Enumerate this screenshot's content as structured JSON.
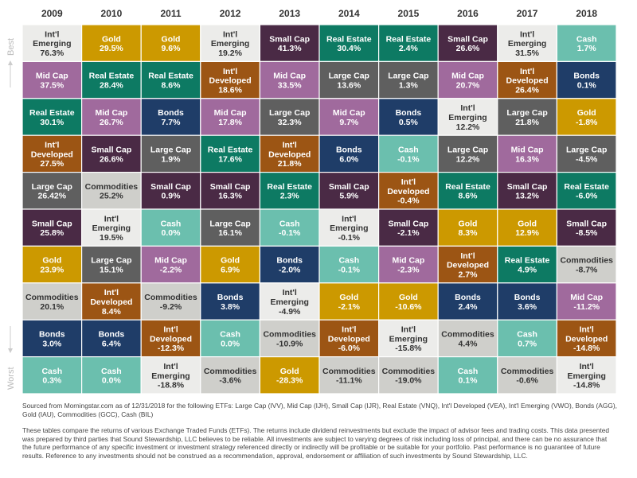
{
  "side_labels": {
    "best": "Best",
    "worst": "Worst"
  },
  "colors": {
    "Int'l Emerging": "#ececea",
    "Gold": "#cc9900",
    "Small Cap": "#4a2a45",
    "Real Estate": "#0d7a63",
    "Cash": "#6bbfae",
    "Mid Cap": "#a06a9d",
    "Large Cap": "#5f5f5f",
    "Int'l Developed": "#9c5514",
    "Bonds": "#1f3d68",
    "Commodities": "#cfcfcb"
  },
  "dark_text_classes": [
    "Int'l Emerging",
    "Commodities"
  ],
  "chart_data": {
    "type": "table",
    "years": [
      "2009",
      "2010",
      "2011",
      "2012",
      "2013",
      "2014",
      "2015",
      "2016",
      "2017",
      "2018"
    ],
    "columns": [
      [
        [
          "Int'l Emerging",
          "76.3%"
        ],
        [
          "Mid Cap",
          "37.5%"
        ],
        [
          "Real Estate",
          "30.1%"
        ],
        [
          "Int'l Developed",
          "27.5%"
        ],
        [
          "Large Cap",
          "26.42%"
        ],
        [
          "Small Cap",
          "25.8%"
        ],
        [
          "Gold",
          "23.9%"
        ],
        [
          "Commodities",
          "20.1%"
        ],
        [
          "Bonds",
          "3.0%"
        ],
        [
          "Cash",
          "0.3%"
        ]
      ],
      [
        [
          "Gold",
          "29.5%"
        ],
        [
          "Real Estate",
          "28.4%"
        ],
        [
          "Mid Cap",
          "26.7%"
        ],
        [
          "Small Cap",
          "26.6%"
        ],
        [
          "Commodities",
          "25.2%"
        ],
        [
          "Int'l Emerging",
          "19.5%"
        ],
        [
          "Large Cap",
          "15.1%"
        ],
        [
          "Int'l Developed",
          "8.4%"
        ],
        [
          "Bonds",
          "6.4%"
        ],
        [
          "Cash",
          "0.0%"
        ]
      ],
      [
        [
          "Gold",
          "9.6%"
        ],
        [
          "Real Estate",
          "8.6%"
        ],
        [
          "Bonds",
          "7.7%"
        ],
        [
          "Large Cap",
          "1.9%"
        ],
        [
          "Small Cap",
          "0.9%"
        ],
        [
          "Cash",
          "0.0%"
        ],
        [
          "Mid Cap",
          "-2.2%"
        ],
        [
          "Commodities",
          "-9.2%"
        ],
        [
          "Int'l Developed",
          "-12.3%"
        ],
        [
          "Int'l Emerging",
          "-18.8%"
        ]
      ],
      [
        [
          "Int'l Emerging",
          "19.2%"
        ],
        [
          "Int'l Developed",
          "18.6%"
        ],
        [
          "Mid Cap",
          "17.8%"
        ],
        [
          "Real Estate",
          "17.6%"
        ],
        [
          "Small Cap",
          "16.3%"
        ],
        [
          "Large Cap",
          "16.1%"
        ],
        [
          "Gold",
          "6.9%"
        ],
        [
          "Bonds",
          "3.8%"
        ],
        [
          "Cash",
          "0.0%"
        ],
        [
          "Commodities",
          "-3.6%"
        ]
      ],
      [
        [
          "Small Cap",
          "41.3%"
        ],
        [
          "Mid Cap",
          "33.5%"
        ],
        [
          "Large Cap",
          "32.3%"
        ],
        [
          "Int'l Developed",
          "21.8%"
        ],
        [
          "Real Estate",
          "2.3%"
        ],
        [
          "Cash",
          "-0.1%"
        ],
        [
          "Bonds",
          "-2.0%"
        ],
        [
          "Int'l Emerging",
          "-4.9%"
        ],
        [
          "Commodities",
          "-10.9%"
        ],
        [
          "Gold",
          "-28.3%"
        ]
      ],
      [
        [
          "Real Estate",
          "30.4%"
        ],
        [
          "Large Cap",
          "13.6%"
        ],
        [
          "Mid Cap",
          "9.7%"
        ],
        [
          "Bonds",
          "6.0%"
        ],
        [
          "Small Cap",
          "5.9%"
        ],
        [
          "Int'l Emerging",
          "-0.1%"
        ],
        [
          "Cash",
          "-0.1%"
        ],
        [
          "Gold",
          "-2.1%"
        ],
        [
          "Int'l Developed",
          "-6.0%"
        ],
        [
          "Commodities",
          "-11.1%"
        ]
      ],
      [
        [
          "Real Estate",
          "2.4%"
        ],
        [
          "Large Cap",
          "1.3%"
        ],
        [
          "Bonds",
          "0.5%"
        ],
        [
          "Cash",
          "-0.1%"
        ],
        [
          "Int'l Developed",
          "-0.4%"
        ],
        [
          "Small Cap",
          "-2.1%"
        ],
        [
          "Mid Cap",
          "-2.3%"
        ],
        [
          "Gold",
          "-10.6%"
        ],
        [
          "Int'l Emerging",
          "-15.8%"
        ],
        [
          "Commodities",
          "-19.0%"
        ]
      ],
      [
        [
          "Small Cap",
          "26.6%"
        ],
        [
          "Mid Cap",
          "20.7%"
        ],
        [
          "Int'l Emerging",
          "12.2%"
        ],
        [
          "Large Cap",
          "12.2%"
        ],
        [
          "Real Estate",
          "8.6%"
        ],
        [
          "Gold",
          "8.3%"
        ],
        [
          "Int'l Developed",
          "2.7%"
        ],
        [
          "Bonds",
          "2.4%"
        ],
        [
          "Commodities",
          "4.4%"
        ],
        [
          "Cash",
          "0.1%"
        ]
      ],
      [
        [
          "Int'l Emerging",
          "31.5%"
        ],
        [
          "Int'l Developed",
          "26.4%"
        ],
        [
          "Large Cap",
          "21.8%"
        ],
        [
          "Mid Cap",
          "16.3%"
        ],
        [
          "Small Cap",
          "13.2%"
        ],
        [
          "Gold",
          "12.9%"
        ],
        [
          "Real Estate",
          "4.9%"
        ],
        [
          "Bonds",
          "3.6%"
        ],
        [
          "Cash",
          "0.7%"
        ],
        [
          "Commodities",
          "-0.6%"
        ]
      ],
      [
        [
          "Cash",
          "1.7%"
        ],
        [
          "Bonds",
          "0.1%"
        ],
        [
          "Gold",
          "-1.8%"
        ],
        [
          "Large Cap",
          "-4.5%"
        ],
        [
          "Real Estate",
          "-6.0%"
        ],
        [
          "Small Cap",
          "-8.5%"
        ],
        [
          "Commodities",
          "-8.7%"
        ],
        [
          "Mid Cap",
          "-11.2%"
        ],
        [
          "Int'l Developed",
          "-14.8%"
        ],
        [
          "Int'l Emerging",
          "-14.8%"
        ]
      ]
    ]
  },
  "footer": {
    "source": "Sourced from Morningstar.com as of 12/31/2018 for the following ETFs: Large Cap (IVV), Mid Cap (IJH), Small Cap (IJR), Real Estate (VNQ), Int'l Developed (VEA), Int'l Emerging (VWO), Bonds (AGG), Gold (IAU), Commodities (GCC), Cash (BIL)",
    "disclaimer": "These tables compare the returns of various Exchange Traded Funds (ETFs). The returns include dividend reinvestments but exclude the impact of advisor fees and trading costs. This data presented was prepared by third parties that Sound Stewardship, LLC believes to be reliable. All investments are subject to varying degrees of risk including loss of principal, and there can be no assurance that the future performance of any specific investment or investment strategy referenced directly or indirectly will be profitable or be suitable for your portfolio. Past performance is no guarantee of future results. Reference to any investments should not be construed as a recommendation, approval, endorsement or affiliation of such investments by Sound Stewardship, LLC."
  }
}
